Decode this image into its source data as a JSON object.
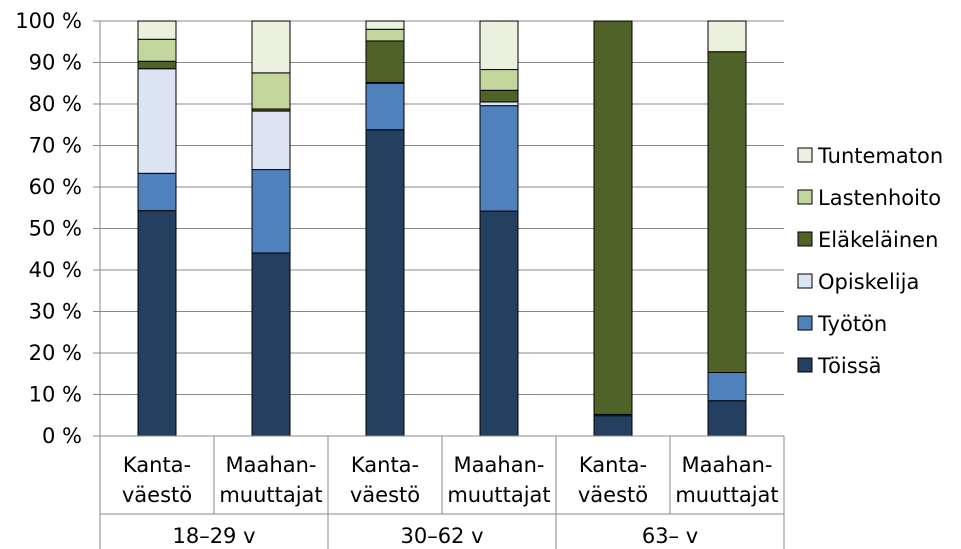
{
  "chart_data": {
    "type": "bar",
    "stacked": true,
    "percent_axis": true,
    "ylim": [
      0,
      100
    ],
    "yticks": [
      0,
      10,
      20,
      30,
      40,
      50,
      60,
      70,
      80,
      90,
      100
    ],
    "ytick_labels": [
      "0 %",
      "10 %",
      "20 %",
      "30 %",
      "40 %",
      "50 %",
      "60 %",
      "70 %",
      "80 %",
      "90 %",
      "100 %"
    ],
    "grid": true,
    "legend_position": "right",
    "categories": [
      [
        "Kanta-",
        "väestö"
      ],
      [
        "Maahan-",
        "muuttajat"
      ],
      [
        "Kanta-",
        "väestö"
      ],
      [
        "Maahan-",
        "muuttajat"
      ],
      [
        "Kanta-",
        "väestö"
      ],
      [
        "Maahan-",
        "muuttajat"
      ]
    ],
    "groups": [
      {
        "label": "18–29 v",
        "span": 2
      },
      {
        "label": "30–62 v",
        "span": 2
      },
      {
        "label": "63– v",
        "span": 2
      }
    ],
    "series": [
      {
        "name": "Töissä",
        "color": "#243f60",
        "values": [
          54.3,
          44.1,
          73.8,
          54.2,
          4.9,
          8.5
        ]
      },
      {
        "name": "Työtön",
        "color": "#4f81bd",
        "values": [
          9.0,
          20.1,
          11.2,
          25.4,
          0.3,
          6.8
        ]
      },
      {
        "name": "Opiskelija",
        "color": "#dbe5f1",
        "values": [
          25.2,
          14.1,
          0.2,
          0.9,
          0.0,
          0.0
        ]
      },
      {
        "name": "Eläkeläinen",
        "color": "#4f6228",
        "values": [
          1.8,
          0.5,
          10.0,
          2.8,
          94.8,
          77.3
        ]
      },
      {
        "name": "Lastenhoito",
        "color": "#c3d69b",
        "values": [
          5.3,
          8.7,
          2.8,
          5.0,
          0.0,
          0.0
        ]
      },
      {
        "name": "Tuntematon",
        "color": "#ebf1de",
        "values": [
          4.4,
          12.5,
          2.0,
          11.7,
          0.0,
          7.4
        ]
      }
    ]
  }
}
